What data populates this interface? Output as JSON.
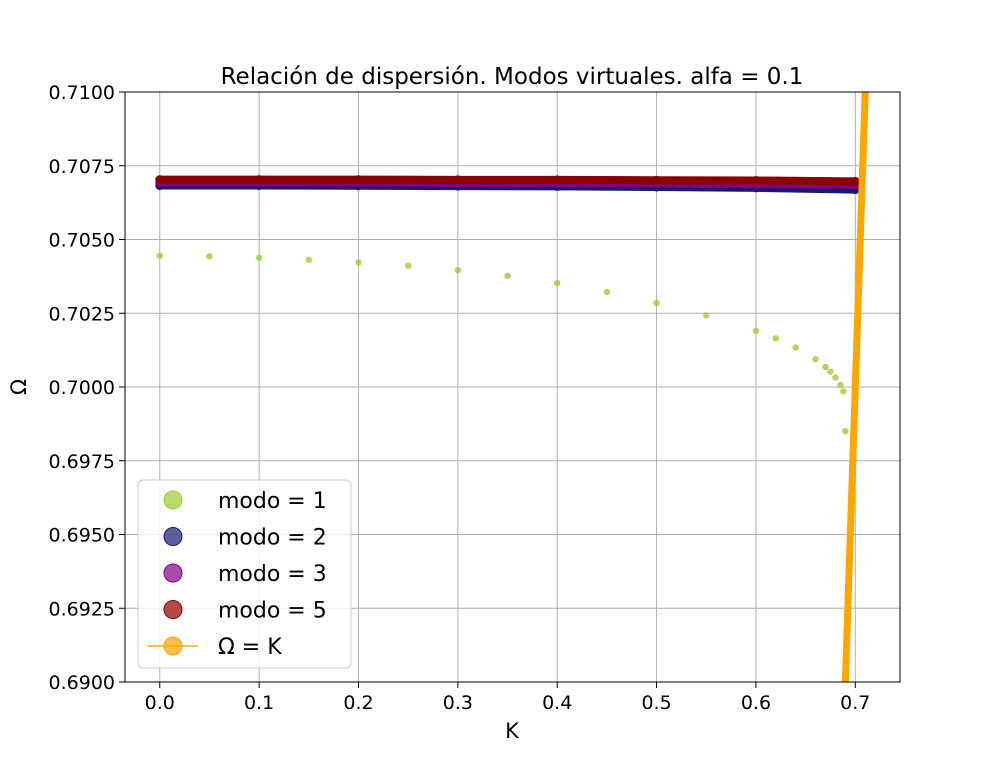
{
  "chart_data": {
    "type": "scatter",
    "title": "Relación de dispersión. Modos virtuales. alfa = 0.1",
    "xlabel": "K",
    "ylabel": "Ω",
    "xlim": [
      -0.035,
      0.745
    ],
    "ylim": [
      0.69,
      0.71
    ],
    "grid": true,
    "legend_position": "lower-left",
    "xticks": [
      0.0,
      0.1,
      0.2,
      0.3,
      0.4,
      0.5,
      0.6,
      0.7
    ],
    "xtick_labels": [
      "0.0",
      "0.1",
      "0.2",
      "0.3",
      "0.4",
      "0.5",
      "0.6",
      "0.7"
    ],
    "yticks": [
      0.69,
      0.6925,
      0.695,
      0.6975,
      0.7,
      0.7025,
      0.705,
      0.7075,
      0.71
    ],
    "ytick_labels": [
      "0.6900",
      "0.6925",
      "0.6950",
      "0.6975",
      "0.7000",
      "0.7025",
      "0.7050",
      "0.7075",
      "0.7100"
    ],
    "series": [
      {
        "name": "modo = 1",
        "color": "#9acd32",
        "marker": "circle",
        "x": [
          0.0,
          0.05,
          0.1,
          0.15,
          0.2,
          0.25,
          0.3,
          0.35,
          0.4,
          0.45,
          0.5,
          0.55,
          0.6,
          0.62,
          0.64,
          0.66,
          0.67,
          0.675,
          0.68,
          0.685,
          0.688,
          0.69
        ],
        "y": [
          0.70445,
          0.70443,
          0.70438,
          0.70431,
          0.70422,
          0.70411,
          0.70396,
          0.70377,
          0.70352,
          0.70322,
          0.70285,
          0.70243,
          0.7019,
          0.70165,
          0.70134,
          0.70094,
          0.70068,
          0.70052,
          0.70032,
          0.70007,
          0.69985,
          0.6985
        ]
      },
      {
        "name": "modo = 2",
        "color": "#191970",
        "marker": "circle",
        "x": [
          0.0,
          0.1,
          0.2,
          0.3,
          0.4,
          0.5,
          0.6,
          0.7
        ],
        "y": [
          0.70683,
          0.70683,
          0.70682,
          0.70681,
          0.7068,
          0.70678,
          0.70675,
          0.70669
        ]
      },
      {
        "name": "modo = 3",
        "color": "#800080",
        "marker": "circle",
        "x": [
          0.0,
          0.1,
          0.2,
          0.3,
          0.4,
          0.5,
          0.6,
          0.7
        ],
        "y": [
          0.70694,
          0.70694,
          0.70693,
          0.70692,
          0.70691,
          0.7069,
          0.70688,
          0.70685
        ]
      },
      {
        "name": "modo = 5",
        "color": "#8b0000",
        "marker": "circle",
        "x": [
          0.0,
          0.1,
          0.2,
          0.3,
          0.4,
          0.5,
          0.6,
          0.7
        ],
        "y": [
          0.70703,
          0.70703,
          0.70703,
          0.70702,
          0.70702,
          0.70701,
          0.707,
          0.70697
        ]
      },
      {
        "name": "Ω = K",
        "color": "#ffa500",
        "marker": "circle-line",
        "x": [
          0.69,
          0.71
        ],
        "y": [
          0.69,
          0.71
        ]
      }
    ]
  }
}
